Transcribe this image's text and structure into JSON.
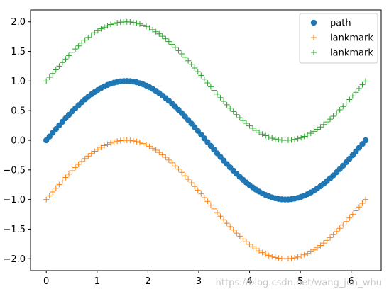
{
  "chart_data": {
    "type": "scatter",
    "title": "",
    "xlabel": "",
    "ylabel": "",
    "xlim": [
      -0.31,
      6.59
    ],
    "ylim": [
      -2.2,
      2.2
    ],
    "grid": false,
    "legend_position": "top-right",
    "x_ticks": [
      0,
      1,
      2,
      3,
      4,
      5,
      6
    ],
    "x_tick_labels": [
      "0",
      "1",
      "2",
      "3",
      "4",
      "5",
      "6"
    ],
    "y_ticks": [
      -2.0,
      -1.5,
      -1.0,
      -0.5,
      0.0,
      0.5,
      1.0,
      1.5,
      2.0
    ],
    "y_tick_labels": [
      "−2.0",
      "−1.5",
      "−1.0",
      "−0.5",
      "0.0",
      "0.5",
      "1.0",
      "1.5",
      "2.0"
    ],
    "x_start": 0,
    "x_end": 6.2832,
    "num_points": 100,
    "series": [
      {
        "name": "path",
        "marker": "circle",
        "color": "#1f77b4",
        "function": "sin(x)",
        "offset": 0
      },
      {
        "name": "lankmark",
        "marker": "plus",
        "color": "#ff7f0e",
        "function": "sin(x)",
        "offset": -1
      },
      {
        "name": "lankmark",
        "marker": "plus",
        "color": "#2ca02c",
        "function": "sin(x)",
        "offset": 1
      }
    ],
    "watermark": "https://blog.csdn.net/wang_jun_whu"
  }
}
